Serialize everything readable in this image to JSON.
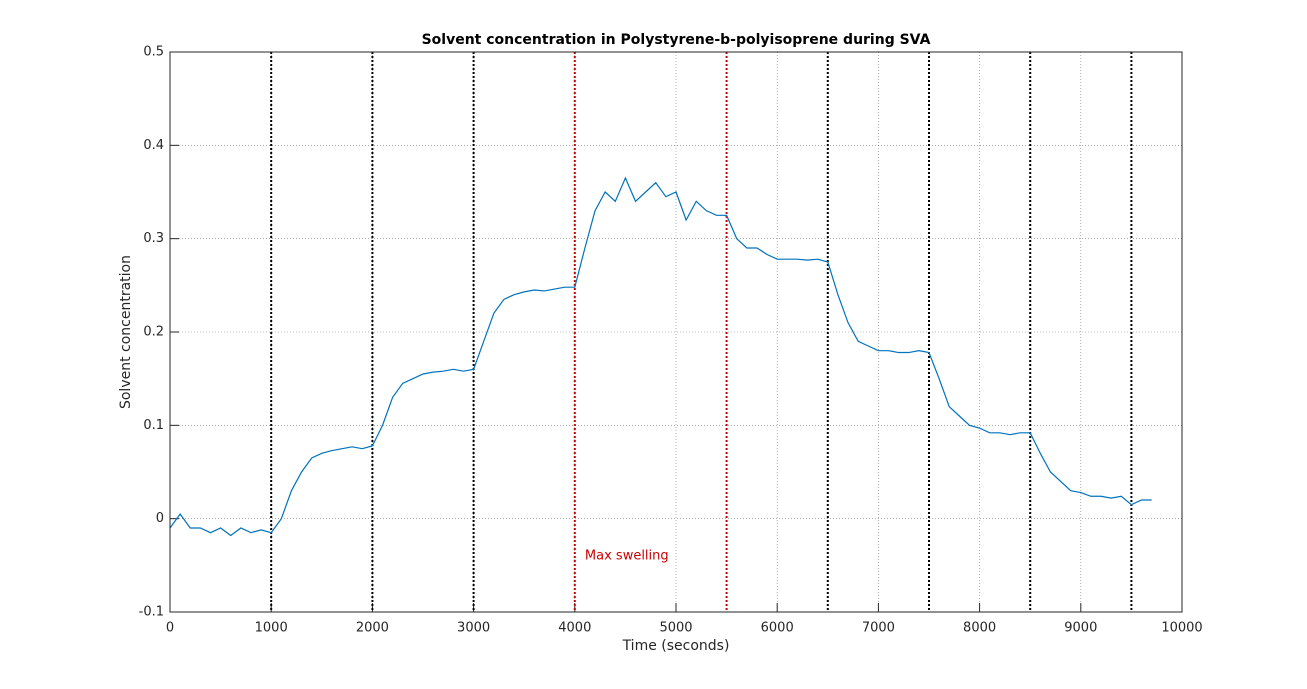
{
  "chart_data": {
    "type": "line",
    "title": "Solvent concentration in Polystyrene-b-polyisoprene during SVA",
    "xlabel": "Time (seconds)",
    "ylabel": "Solvent concentration",
    "x": [
      0,
      100,
      200,
      300,
      400,
      500,
      600,
      700,
      800,
      900,
      1000,
      1100,
      1200,
      1300,
      1400,
      1500,
      1600,
      1700,
      1800,
      1900,
      2000,
      2100,
      2200,
      2300,
      2400,
      2500,
      2600,
      2700,
      2800,
      2900,
      3000,
      3100,
      3200,
      3300,
      3400,
      3500,
      3600,
      3700,
      3800,
      3900,
      4000,
      4100,
      4200,
      4300,
      4400,
      4500,
      4600,
      4700,
      4800,
      4900,
      5000,
      5100,
      5200,
      5300,
      5400,
      5500,
      5600,
      5700,
      5800,
      5900,
      6000,
      6100,
      6200,
      6300,
      6400,
      6500,
      6600,
      6700,
      6800,
      6900,
      7000,
      7100,
      7200,
      7300,
      7400,
      7500,
      7600,
      7700,
      7800,
      7900,
      8000,
      8100,
      8200,
      8300,
      8400,
      8500,
      8600,
      8700,
      8800,
      8900,
      9000,
      9100,
      9200,
      9300,
      9400,
      9500,
      9600,
      9700
    ],
    "series": [
      {
        "name": "Solvent concentration",
        "color": "#0072bd",
        "values": [
          -0.01,
          0.005,
          -0.01,
          -0.01,
          -0.015,
          -0.01,
          -0.018,
          -0.01,
          -0.015,
          -0.012,
          -0.015,
          0.0,
          0.03,
          0.05,
          0.065,
          0.07,
          0.073,
          0.075,
          0.077,
          0.075,
          0.078,
          0.1,
          0.13,
          0.145,
          0.15,
          0.155,
          0.157,
          0.158,
          0.16,
          0.158,
          0.16,
          0.19,
          0.22,
          0.235,
          0.24,
          0.243,
          0.245,
          0.244,
          0.246,
          0.248,
          0.248,
          0.29,
          0.33,
          0.35,
          0.34,
          0.365,
          0.34,
          0.35,
          0.36,
          0.345,
          0.35,
          0.32,
          0.34,
          0.33,
          0.325,
          0.325,
          0.3,
          0.29,
          0.29,
          0.283,
          0.278,
          0.278,
          0.278,
          0.277,
          0.278,
          0.275,
          0.24,
          0.21,
          0.19,
          0.185,
          0.18,
          0.18,
          0.178,
          0.178,
          0.18,
          0.178,
          0.15,
          0.12,
          0.11,
          0.1,
          0.097,
          0.092,
          0.092,
          0.09,
          0.092,
          0.092,
          0.07,
          0.05,
          0.04,
          0.03,
          0.028,
          0.024,
          0.024,
          0.022,
          0.024,
          0.015,
          0.02,
          0.02
        ]
      }
    ],
    "xlim": [
      0,
      10000
    ],
    "xticks": [
      0,
      1000,
      2000,
      3000,
      4000,
      5000,
      6000,
      7000,
      8000,
      9000,
      10000
    ],
    "ylim": [
      -0.1,
      0.5
    ],
    "yticks": [
      -0.1,
      0,
      0.1,
      0.2,
      0.3,
      0.4,
      0.5
    ],
    "grid": true,
    "vlines": [
      {
        "x": 1000,
        "color": "#000000"
      },
      {
        "x": 2000,
        "color": "#000000"
      },
      {
        "x": 3000,
        "color": "#000000"
      },
      {
        "x": 4000,
        "color": "#cc0000"
      },
      {
        "x": 5500,
        "color": "#cc0000"
      },
      {
        "x": 6500,
        "color": "#000000"
      },
      {
        "x": 7500,
        "color": "#000000"
      },
      {
        "x": 8500,
        "color": "#000000"
      },
      {
        "x": 9500,
        "color": "#000000"
      }
    ],
    "annotations": [
      {
        "text": "Max swelling",
        "x": 4100,
        "y": -0.04,
        "color": "#cc0000"
      }
    ]
  }
}
